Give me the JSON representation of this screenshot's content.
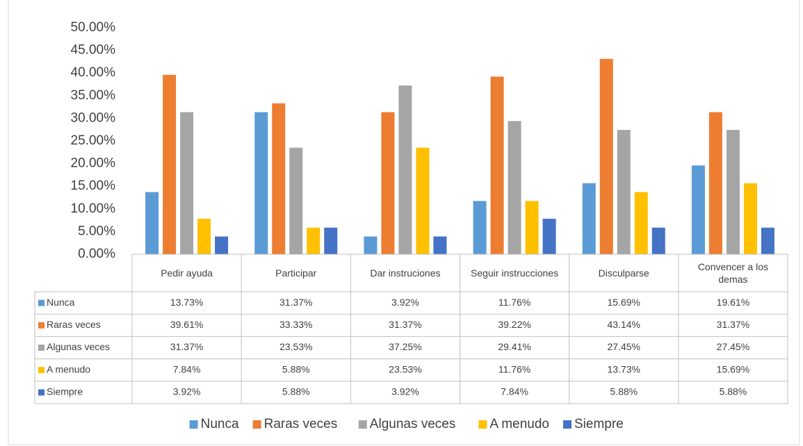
{
  "chart_data": {
    "type": "bar",
    "categories": [
      "Pedir ayuda",
      "Participar",
      "Dar instruciones",
      "Seguir instrucciones",
      "Disculparse",
      "Convencer a los demas"
    ],
    "series": [
      {
        "name": "Nunca",
        "color": "#5b9bd5",
        "values": [
          13.73,
          31.37,
          3.92,
          11.76,
          15.69,
          19.61
        ],
        "value_labels": [
          "13.73%",
          "31.37%",
          "3.92%",
          "11.76%",
          "15.69%",
          "19.61%"
        ]
      },
      {
        "name": "Raras veces",
        "color": "#ed7d31",
        "values": [
          39.61,
          33.33,
          31.37,
          39.22,
          43.14,
          31.37
        ],
        "value_labels": [
          "39.61%",
          "33.33%",
          "31.37%",
          "39.22%",
          "43.14%",
          "31.37%"
        ]
      },
      {
        "name": "Algunas veces",
        "color": "#a5a5a5",
        "values": [
          31.37,
          23.53,
          37.25,
          29.41,
          27.45,
          27.45
        ],
        "value_labels": [
          "31.37%",
          "23.53%",
          "37.25%",
          "29.41%",
          "27.45%",
          "27.45%"
        ]
      },
      {
        "name": "A menudo",
        "color": "#ffc000",
        "values": [
          7.84,
          5.88,
          23.53,
          11.76,
          13.73,
          15.69
        ],
        "value_labels": [
          "7.84%",
          "5.88%",
          "23.53%",
          "11.76%",
          "13.73%",
          "15.69%"
        ]
      },
      {
        "name": "Siempre",
        "color": "#4472c4",
        "values": [
          3.92,
          5.88,
          3.92,
          7.84,
          5.88,
          5.88
        ],
        "value_labels": [
          "3.92%",
          "5.88%",
          "3.92%",
          "7.84%",
          "5.88%",
          "5.88%"
        ]
      }
    ],
    "ylim": [
      0,
      50
    ],
    "yticks": [
      {
        "value": 0,
        "label": "0.00%"
      },
      {
        "value": 5,
        "label": "5.00%"
      },
      {
        "value": 10,
        "label": "10.00%"
      },
      {
        "value": 15,
        "label": "15.00%"
      },
      {
        "value": 20,
        "label": "20.00%"
      },
      {
        "value": 25,
        "label": "25.00%"
      },
      {
        "value": 30,
        "label": "30.00%"
      },
      {
        "value": 35,
        "label": "35.00%"
      },
      {
        "value": 40,
        "label": "40.00%"
      },
      {
        "value": 45,
        "label": "45.00%"
      },
      {
        "value": 50,
        "label": "50.00%"
      }
    ],
    "legend": "bottom",
    "grid": false
  }
}
